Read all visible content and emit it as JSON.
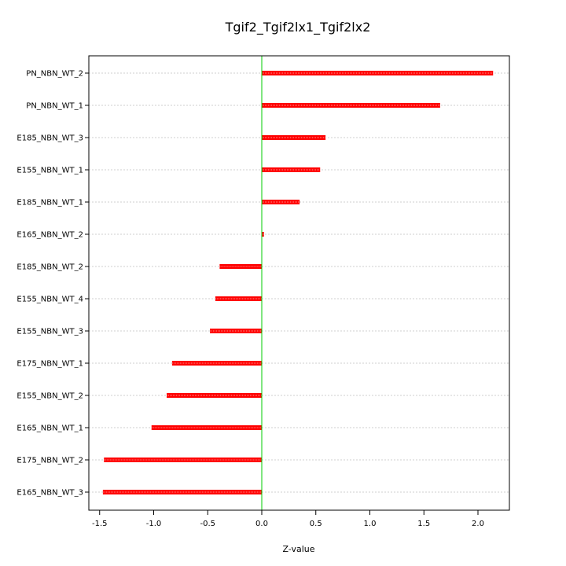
{
  "chart_data": {
    "type": "bar",
    "orientation": "horizontal",
    "title": "Tgif2_Tgif2lx1_Tgif2lx2",
    "xlabel": "Z-value",
    "ylabel": "",
    "categories": [
      "PN_NBN_WT_2",
      "PN_NBN_WT_1",
      "E185_NBN_WT_3",
      "E155_NBN_WT_1",
      "E185_NBN_WT_1",
      "E165_NBN_WT_2",
      "E185_NBN_WT_2",
      "E155_NBN_WT_4",
      "E155_NBN_WT_3",
      "E175_NBN_WT_1",
      "E155_NBN_WT_2",
      "E165_NBN_WT_1",
      "E175_NBN_WT_2",
      "E165_NBN_WT_3"
    ],
    "values": [
      2.14,
      1.65,
      0.59,
      0.54,
      0.35,
      0.02,
      -0.39,
      -0.43,
      -0.48,
      -0.83,
      -0.88,
      -1.02,
      -1.46,
      -1.47
    ],
    "xlim": [
      -1.6,
      2.3
    ],
    "xticks": [
      "-1.5",
      "-1.0",
      "-0.5",
      "0.0",
      "0.5",
      "1.0",
      "1.5",
      "2.0"
    ],
    "grid": true,
    "colors": {
      "bar": "#ff0000",
      "bar_center": "#ff9999",
      "zero_line": "#00cc00",
      "grid": "#c0c0c0"
    }
  }
}
